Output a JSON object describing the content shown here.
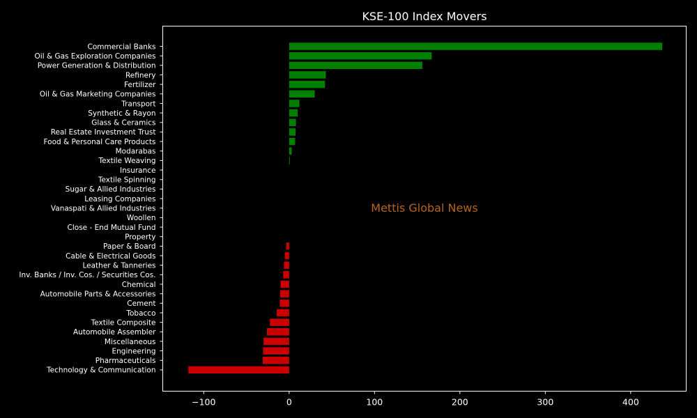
{
  "chart_data": {
    "type": "bar",
    "orientation": "horizontal",
    "title": "KSE-100 Index Movers",
    "xlabel": "",
    "ylabel": "",
    "xlim": [
      -148,
      465
    ],
    "xticks": [
      -100,
      0,
      100,
      200,
      300,
      400
    ],
    "xtick_labels": [
      "−100",
      "0",
      "100",
      "200",
      "300",
      "400"
    ],
    "grid": false,
    "watermark": "Mettis Global News",
    "positive_color": "#008000",
    "negative_color": "#cc0000",
    "background_color": "#000000",
    "categories": [
      "Commercial Banks",
      "Oil & Gas Exploration Companies",
      "Power Generation & Distribution",
      "Refinery",
      "Fertilizer",
      "Oil & Gas Marketing Companies",
      "Transport",
      "Synthetic & Rayon",
      "Glass & Ceramics",
      "Real Estate Investment Trust",
      "Food & Personal Care Products",
      "Modarabas",
      "Textile Weaving",
      "Insurance",
      "Textile Spinning",
      "Sugar & Allied Industries",
      "Leasing Companies",
      "Vanaspati & Allied Industries",
      "Woollen",
      "Close - End Mutual Fund",
      "Property",
      "Paper & Board",
      "Cable & Electrical Goods",
      "Leather & Tanneries",
      "Inv. Banks / Inv. Cos. / Securities Cos.",
      "Chemical",
      "Automobile Parts & Accessories",
      "Cement",
      "Tobacco",
      "Textile Composite",
      "Automobile Assembler",
      "Miscellaneous",
      "Engineering",
      "Pharmaceuticals",
      "Technology & Communication"
    ],
    "values": [
      437,
      167,
      156,
      43,
      42,
      30,
      12,
      10,
      8,
      7.5,
      7,
      3,
      0.5,
      0,
      0,
      0,
      0,
      0,
      0,
      0,
      0,
      -3.5,
      -5,
      -6,
      -7,
      -10,
      -10.5,
      -11,
      -14.5,
      -22.5,
      -26,
      -30,
      -30.5,
      -31,
      -118
    ]
  }
}
